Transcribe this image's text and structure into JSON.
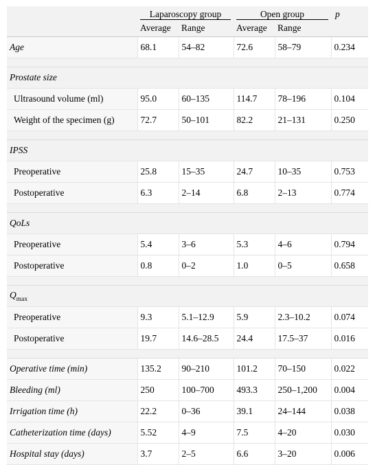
{
  "header": {
    "group1": "Laparoscopy group",
    "group2": "Open group",
    "p": "p",
    "sub": [
      "Average",
      "Range",
      "Average",
      "Range"
    ]
  },
  "rows": [
    {
      "type": "row",
      "label": "Age",
      "italic": true,
      "cells": [
        "68.1",
        "54–82",
        "72.6",
        "58–79",
        "0.234"
      ]
    },
    {
      "type": "gap"
    },
    {
      "type": "section",
      "label": "Prostate size"
    },
    {
      "type": "row",
      "label": "Ultrasound volume (ml)",
      "indent": true,
      "cells": [
        "95.0",
        "60–135",
        "114.7",
        "78–196",
        "0.104"
      ]
    },
    {
      "type": "row",
      "label": "Weight of the specimen (g)",
      "indent": true,
      "cells": [
        "72.7",
        "50–101",
        "82.2",
        "21–131",
        "0.250"
      ]
    },
    {
      "type": "gap"
    },
    {
      "type": "section",
      "label": "IPSS"
    },
    {
      "type": "row",
      "label": "Preoperative",
      "indent": true,
      "cells": [
        "25.8",
        "15–35",
        "24.7",
        "10–35",
        "0.753"
      ]
    },
    {
      "type": "row",
      "label": "Postoperative",
      "indent": true,
      "cells": [
        "6.3",
        "2–14",
        "6.8",
        "2–13",
        "0.774"
      ]
    },
    {
      "type": "gap"
    },
    {
      "type": "section",
      "label": "QoLs"
    },
    {
      "type": "row",
      "label": "Preoperative",
      "indent": true,
      "cells": [
        "5.4",
        "3–6",
        "5.3",
        "4–6",
        "0.794"
      ]
    },
    {
      "type": "row",
      "label": "Postoperative",
      "indent": true,
      "cells": [
        "0.8",
        "0–2",
        "1.0",
        "0–5",
        "0.658"
      ]
    },
    {
      "type": "gap"
    },
    {
      "type": "section",
      "label": "Q",
      "sub": "max"
    },
    {
      "type": "row",
      "label": "Preoperative",
      "indent": true,
      "cells": [
        "9.3",
        "5.1–12.9",
        "5.9",
        "2.3–10.2",
        "0.074"
      ]
    },
    {
      "type": "row",
      "label": "Postoperative",
      "indent": true,
      "cells": [
        "19.7",
        "14.6–28.5",
        "24.4",
        "17.5–37",
        "0.016"
      ]
    },
    {
      "type": "gap"
    },
    {
      "type": "row",
      "label": "Operative time (min)",
      "italic": true,
      "cells": [
        "135.2",
        "90–210",
        "101.2",
        "70–150",
        "0.022"
      ]
    },
    {
      "type": "row",
      "label": "Bleeding (ml)",
      "italic": true,
      "cells": [
        "250",
        "100–700",
        "493.3",
        "250–1,200",
        "0.004"
      ]
    },
    {
      "type": "row",
      "label": "Irrigation time (h)",
      "italic": true,
      "cells": [
        "22.2",
        "0–36",
        "39.1",
        "24–144",
        "0.038"
      ]
    },
    {
      "type": "row",
      "label": "Catheterization time (days)",
      "italic": true,
      "cells": [
        "5.52",
        "4–9",
        "7.5",
        "4–20",
        "0.030"
      ]
    },
    {
      "type": "row",
      "label": "Hospital stay (days)",
      "italic": true,
      "cells": [
        "3.7",
        "2–5",
        "6.6",
        "3–20",
        "0.006"
      ]
    }
  ]
}
